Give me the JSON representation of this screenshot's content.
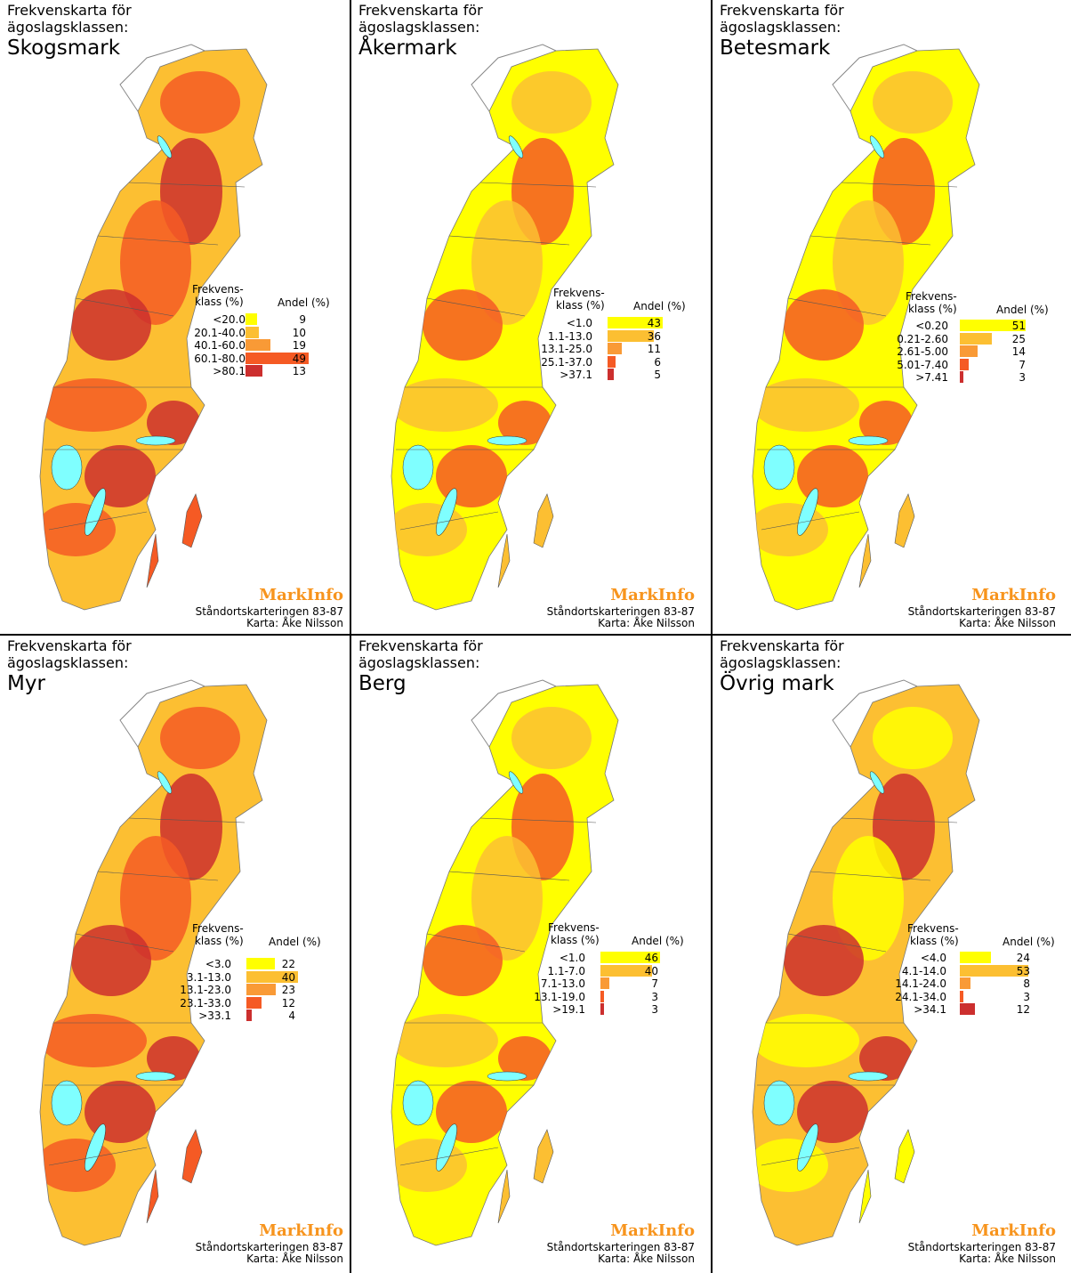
{
  "common": {
    "subtitle": "Frekvenskarta för\nägoslagsklassen:",
    "legend_class_header": "Frekvens-\nklass (%)",
    "legend_share_header": "Andel (%)",
    "brand": "MarkInfo",
    "credit_line1": "Ståndortskarteringen 83-87",
    "credit_line2": "Karta: Åke Nilsson"
  },
  "colors": {
    "c1": "#ffff00",
    "c2": "#fcbf32",
    "c3": "#f99a36",
    "c4": "#f55a24",
    "c5": "#cc2f2e",
    "lake": "#7fffff",
    "border": "#555555"
  },
  "panels": [
    {
      "title": "Skogsmark",
      "map_levels": [
        "c2",
        "c4",
        "c5"
      ],
      "legend": [
        {
          "class": "<20.0",
          "share": "9",
          "level": "c1"
        },
        {
          "class": "20.1-40.0",
          "share": "10",
          "level": "c2"
        },
        {
          "class": "40.1-60.0",
          "share": "19",
          "level": "c3"
        },
        {
          "class": "60.1-80.0",
          "share": "49",
          "level": "c4"
        },
        {
          "class": ">80.1",
          "share": "13",
          "level": "c5"
        }
      ]
    },
    {
      "title": "Åkermark",
      "map_levels": [
        "c1",
        "c2",
        "c4"
      ],
      "legend": [
        {
          "class": "<1.0",
          "share": "43",
          "level": "c1"
        },
        {
          "class": "1.1-13.0",
          "share": "36",
          "level": "c2"
        },
        {
          "class": "13.1-25.0",
          "share": "11",
          "level": "c3"
        },
        {
          "class": "25.1-37.0",
          "share": "6",
          "level": "c4"
        },
        {
          "class": ">37.1",
          "share": "5",
          "level": "c5"
        }
      ]
    },
    {
      "title": "Betesmark",
      "map_levels": [
        "c1",
        "c2",
        "c4"
      ],
      "legend": [
        {
          "class": "<0.20",
          "share": "51",
          "level": "c1"
        },
        {
          "class": "0.21-2.60",
          "share": "25",
          "level": "c2"
        },
        {
          "class": "2.61-5.00",
          "share": "14",
          "level": "c3"
        },
        {
          "class": "5.01-7.40",
          "share": "7",
          "level": "c4"
        },
        {
          "class": ">7.41",
          "share": "3",
          "level": "c5"
        }
      ]
    },
    {
      "title": "Myr",
      "map_levels": [
        "c2",
        "c4",
        "c5"
      ],
      "legend": [
        {
          "class": "<3.0",
          "share": "22",
          "level": "c1"
        },
        {
          "class": "3.1-13.0",
          "share": "40",
          "level": "c2"
        },
        {
          "class": "13.1-23.0",
          "share": "23",
          "level": "c3"
        },
        {
          "class": "23.1-33.0",
          "share": "12",
          "level": "c4"
        },
        {
          "class": ">33.1",
          "share": "4",
          "level": "c5"
        }
      ]
    },
    {
      "title": "Berg",
      "map_levels": [
        "c1",
        "c2",
        "c4"
      ],
      "legend": [
        {
          "class": "<1.0",
          "share": "46",
          "level": "c1"
        },
        {
          "class": "1.1-7.0",
          "share": "40",
          "level": "c2"
        },
        {
          "class": "7.1-13.0",
          "share": "7",
          "level": "c3"
        },
        {
          "class": "13.1-19.0",
          "share": "3",
          "level": "c4"
        },
        {
          "class": ">19.1",
          "share": "3",
          "level": "c5"
        }
      ]
    },
    {
      "title": "Övrig mark",
      "map_levels": [
        "c2",
        "c1",
        "c5"
      ],
      "legend": [
        {
          "class": "<4.0",
          "share": "24",
          "level": "c1"
        },
        {
          "class": "4.1-14.0",
          "share": "53",
          "level": "c2"
        },
        {
          "class": "14.1-24.0",
          "share": "8",
          "level": "c3"
        },
        {
          "class": "24.1-34.0",
          "share": "3",
          "level": "c4"
        },
        {
          "class": ">34.1",
          "share": "12",
          "level": "c5"
        }
      ]
    }
  ]
}
